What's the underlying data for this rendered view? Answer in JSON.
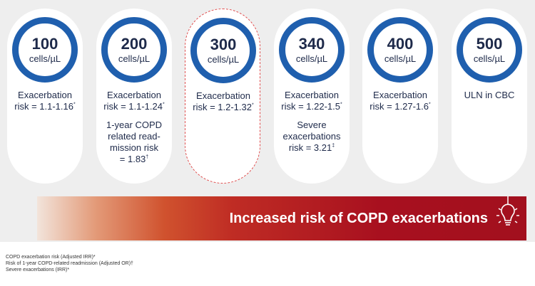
{
  "cards": [
    {
      "value": "100",
      "unit": "cells/µL",
      "lines": [
        "Exacerbation",
        "risk = 1.1-1.16"
      ],
      "mark": "*",
      "extra": [],
      "extra_mark": ""
    },
    {
      "value": "200",
      "unit": "cells/µL",
      "lines": [
        "Exacerbation",
        "risk = 1.1-1.24"
      ],
      "mark": "*",
      "extra": [
        "1-year COPD",
        "related read-",
        "mission risk",
        "= 1.83"
      ],
      "extra_mark": "†"
    },
    {
      "value": "300",
      "unit": "cells/µL",
      "lines": [
        "Exacerbation",
        "risk = 1.2-1.32"
      ],
      "mark": "*",
      "extra": [],
      "extra_mark": ""
    },
    {
      "value": "340",
      "unit": "cells/µL",
      "lines": [
        "Exacerbation",
        "risk = 1.22-1.5"
      ],
      "mark": "*",
      "extra": [
        "Severe",
        "exacerbations",
        "risk = 3.21"
      ],
      "extra_mark": "‡"
    },
    {
      "value": "400",
      "unit": "cells/µL",
      "lines": [
        "Exacerbation",
        "risk = 1.27-1.6"
      ],
      "mark": "*",
      "extra": [],
      "extra_mark": ""
    },
    {
      "value": "500",
      "unit": "cells/µL",
      "lines": [
        "ULN in CBC"
      ],
      "mark": "",
      "extra": [],
      "extra_mark": ""
    }
  ],
  "highlighted_index": 2,
  "banner": {
    "label": "Increased risk of COPD exacerbations",
    "icon": "lightbulb-icon"
  },
  "footnotes": [
    {
      "mark": "*",
      "text": "COPD exacerbation risk (Adjusted IRR)*"
    },
    {
      "mark": "†",
      "text": "Risk of 1-year COPD-related readmission (Adjusted OR)†"
    },
    {
      "mark": "‡",
      "text": "Severe exacerbations (IRR)*"
    }
  ],
  "colors": {
    "ring": "#1f5fae",
    "text": "#1e2a4a",
    "panel": "#eeeeee",
    "banner_end": "#a2101e",
    "highlight_border": "#e05050"
  }
}
